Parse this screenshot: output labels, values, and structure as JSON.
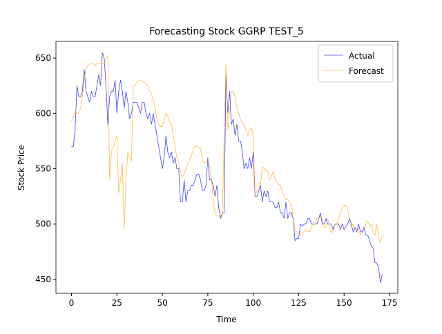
{
  "chart_data": {
    "type": "line",
    "title": "Forecasting Stock GGRP TEST_5",
    "x_label": "Time",
    "y_label": "Stock Price",
    "x": [
      0,
      1,
      2,
      3,
      4,
      5,
      6,
      7,
      8,
      9,
      10,
      11,
      12,
      13,
      14,
      15,
      16,
      17,
      18,
      19,
      20,
      21,
      22,
      23,
      24,
      25,
      26,
      27,
      28,
      29,
      30,
      31,
      32,
      33,
      34,
      35,
      36,
      37,
      38,
      39,
      40,
      41,
      42,
      43,
      44,
      45,
      46,
      47,
      48,
      49,
      50,
      51,
      52,
      53,
      54,
      55,
      56,
      57,
      58,
      59,
      60,
      61,
      62,
      63,
      64,
      65,
      66,
      67,
      68,
      69,
      70,
      71,
      72,
      73,
      74,
      75,
      76,
      77,
      78,
      79,
      80,
      81,
      82,
      83,
      84,
      85,
      86,
      87,
      88,
      89,
      90,
      91,
      92,
      93,
      94,
      95,
      96,
      97,
      98,
      99,
      100,
      101,
      102,
      103,
      104,
      105,
      106,
      107,
      108,
      109,
      110,
      111,
      112,
      113,
      114,
      115,
      116,
      117,
      118,
      119,
      120,
      121,
      122,
      123,
      124,
      125,
      126,
      127,
      128,
      129,
      130,
      131,
      132,
      133,
      134,
      135,
      136,
      137,
      138,
      139,
      140,
      141,
      142,
      143,
      144,
      145,
      146,
      147,
      148,
      149,
      150,
      151,
      152,
      153,
      154,
      155,
      156,
      157,
      158,
      159,
      160,
      161,
      162,
      163,
      164,
      165,
      166,
      167,
      168,
      169,
      170,
      171
    ],
    "series": [
      {
        "name": "Actual",
        "color": "#0000ff",
        "values": [
          570,
          570,
          585,
          625,
          615,
          615,
          620,
          640,
          620,
          615,
          610,
          620,
          615,
          615,
          625,
          635,
          625,
          655,
          650,
          625,
          590,
          615,
          620,
          620,
          630,
          600,
          620,
          630,
          620,
          605,
          620,
          610,
          595,
          600,
          610,
          610,
          610,
          605,
          600,
          610,
          610,
          600,
          595,
          600,
          590,
          600,
          590,
          580,
          570,
          560,
          550,
          560,
          580,
          565,
          560,
          565,
          555,
          560,
          550,
          550,
          520,
          520,
          540,
          520,
          530,
          530,
          535,
          535,
          540,
          545,
          545,
          540,
          530,
          530,
          535,
          560,
          540,
          540,
          535,
          525,
          535,
          515,
          505,
          510,
          510,
          635,
          600,
          620,
          590,
          595,
          580,
          590,
          575,
          575,
          565,
          550,
          555,
          550,
          560,
          550,
          565,
          525,
          525,
          530,
          535,
          520,
          530,
          525,
          530,
          520,
          520,
          520,
          515,
          515,
          520,
          510,
          510,
          505,
          520,
          505,
          510,
          510,
          505,
          485,
          487,
          487,
          500,
          498,
          500,
          500,
          505,
          505,
          500,
          500,
          500,
          500,
          505,
          510,
          500,
          500,
          505,
          500,
          500,
          500,
          495,
          500,
          500,
          500,
          495,
          500,
          495,
          498,
          500,
          505,
          500,
          493,
          497,
          493,
          500,
          493,
          493,
          497,
          490,
          490,
          485,
          480,
          478,
          465,
          465,
          460,
          447,
          455
        ]
      },
      {
        "name": "Forecast",
        "color": "#ffa500",
        "values": [
          593,
          597,
          602,
          600,
          600,
          605,
          615,
          630,
          640,
          643,
          645,
          645,
          645,
          643,
          645,
          645,
          645,
          645,
          645,
          650,
          652,
          540,
          565,
          570,
          575,
          580,
          528,
          540,
          555,
          495,
          540,
          565,
          560,
          557,
          625,
          625,
          628,
          630,
          630,
          629,
          628,
          627,
          625,
          620,
          618,
          612,
          605,
          595,
          590,
          588,
          588,
          595,
          600,
          597,
          592,
          590,
          580,
          570,
          560,
          555,
          548,
          542,
          545,
          550,
          555,
          558,
          562,
          568,
          570,
          570,
          569,
          568,
          558,
          555,
          556,
          557,
          552,
          540,
          522,
          510,
          508,
          507,
          508,
          506,
          580,
          645,
          585,
          600,
          620,
          620,
          615,
          605,
          600,
          595,
          590,
          590,
          585,
          580,
          585,
          587,
          580,
          525,
          530,
          537,
          535,
          552,
          550,
          548,
          548,
          540,
          543,
          548,
          540,
          538,
          536,
          535,
          530,
          525,
          522,
          522,
          520,
          518,
          505,
          495,
          493,
          492,
          490,
          490,
          493,
          495,
          493,
          493,
          498,
          500,
          500,
          505,
          505,
          507,
          505,
          497,
          497,
          505,
          497,
          492,
          497,
          500,
          500,
          505,
          510,
          515,
          517,
          517,
          515,
          500,
          498,
          500,
          495,
          497,
          495,
          490,
          492,
          495,
          500,
          503,
          498,
          500,
          493,
          490,
          500,
          488,
          483,
          490
        ]
      }
    ],
    "xlim": [
      -8.55,
      179.55
    ],
    "ylim": [
      437.5,
      665
    ],
    "xticks": [
      0,
      25,
      50,
      75,
      100,
      125,
      150,
      175
    ],
    "yticks": [
      450,
      500,
      550,
      600,
      650
    ],
    "legend": "upper right"
  }
}
